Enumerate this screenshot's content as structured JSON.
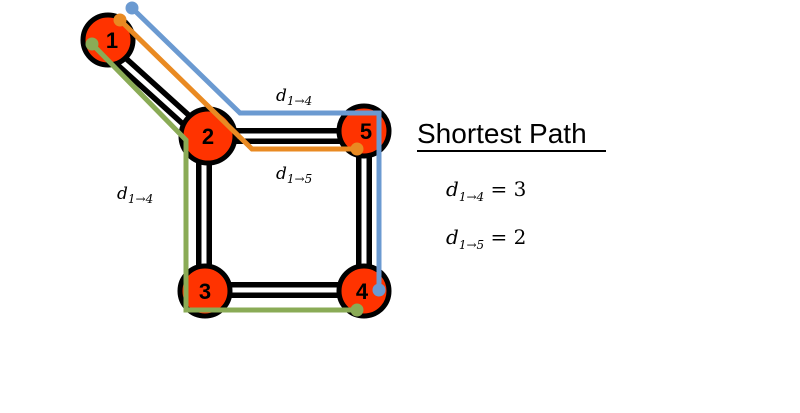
{
  "colors": {
    "node_fill": "#ff3300",
    "node_stroke": "#000000",
    "edge": "#000000",
    "path_blue": "#6b9ad1",
    "path_orange": "#e98a22",
    "path_green": "#8aab56"
  },
  "nodes": [
    {
      "id": "n1",
      "label": "1"
    },
    {
      "id": "n2",
      "label": "2"
    },
    {
      "id": "n3",
      "label": "3"
    },
    {
      "id": "n4",
      "label": "4"
    },
    {
      "id": "n5",
      "label": "5"
    }
  ],
  "edges": [
    {
      "from": "1",
      "to": "2"
    },
    {
      "from": "2",
      "to": "5"
    },
    {
      "from": "2",
      "to": "3"
    },
    {
      "from": "5",
      "to": "4"
    },
    {
      "from": "3",
      "to": "4"
    }
  ],
  "paths": [
    {
      "name": "blue",
      "via": [
        "1",
        "2",
        "5",
        "4"
      ]
    },
    {
      "name": "orange",
      "via": [
        "1",
        "2",
        "5"
      ]
    },
    {
      "name": "green",
      "via": [
        "1",
        "2",
        "3",
        "4"
      ]
    }
  ],
  "labels": {
    "top": {
      "d": "d",
      "sub": "1→4"
    },
    "mid": {
      "d": "d",
      "sub": "1→5"
    },
    "left": {
      "d": "d",
      "sub": "1→4"
    }
  },
  "panel": {
    "title": "Shortest Path",
    "eq1": {
      "d": "d",
      "sub": "1→4",
      "rhs": " = 3"
    },
    "eq2": {
      "d": "d",
      "sub": "1→5",
      "rhs": " = 2"
    }
  }
}
